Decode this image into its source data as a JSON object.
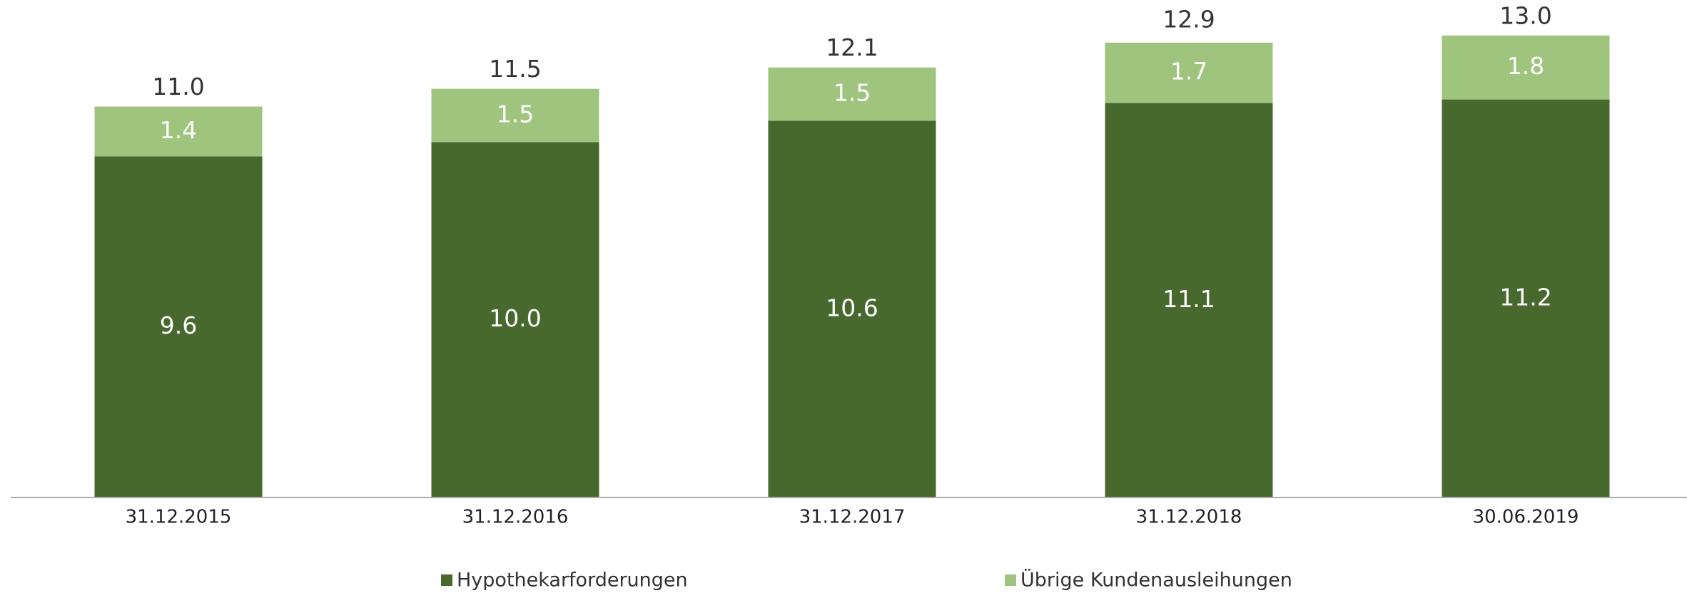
{
  "chart_data": {
    "type": "stacked_bar",
    "categories": [
      "31.12.2015",
      "31.12.2016",
      "31.12.2017",
      "31.12.2018",
      "30.06.2019"
    ],
    "series": [
      {
        "name": "Hypothekarforderungen",
        "color": "#47692e",
        "values": [
          9.6,
          10,
          10.6,
          11.1,
          11.2
        ],
        "value_labels": [
          "9.6",
          "10.0",
          "10.6",
          "11.1",
          "11.2"
        ]
      },
      {
        "name": "Übrige Kundenausleihungen",
        "color": "#9fc47e",
        "values": [
          1.4,
          1.5,
          1.5,
          1.7,
          1.8
        ]
      }
    ],
    "totals": [
      11,
      11.5,
      12.1,
      12.9,
      13
    ],
    "total_labels": [
      "11.0",
      "11.5",
      "12.1",
      "12.9",
      "13.0"
    ],
    "ylim": [
      0,
      14
    ],
    "legend": "bottom"
  }
}
